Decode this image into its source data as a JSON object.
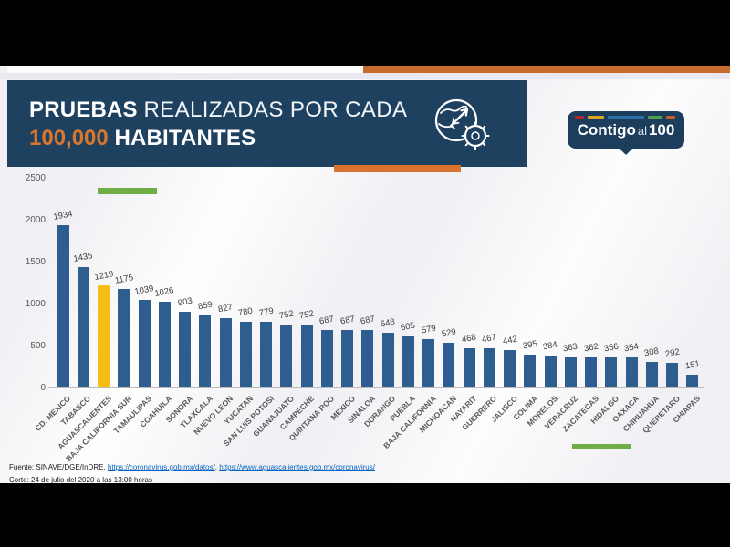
{
  "header": {
    "title_bold1": "PRUEBAS",
    "title_light1": "REALIZADAS POR CADA",
    "title_orange2": "100,000",
    "title_bold2": "HABITANTES"
  },
  "icons": {
    "header_icon": "globe-virus-icon"
  },
  "logo": {
    "word1": "Contigo",
    "word2": "al",
    "word3": "100"
  },
  "footer": {
    "source_prefix": "Fuente: SINAVE/DGE/InDRE,",
    "link1": "https://coronavirus.gob.mx/datos/",
    "separator": ",",
    "link2": "https://www.aguascalientes.gob.mx/coronavirus/",
    "cutoff_line": "Corte: 24 de julio del 2020 a las 13:00 horas"
  },
  "colors": {
    "header_navy": "#1E4160",
    "accent_orange": "#D9732D",
    "strip_orange": "#C76B2D",
    "accent_green": "#6FAD47",
    "bar_blue": "#2E5D8F",
    "bar_highlight_yellow": "#F6BD16",
    "link_blue": "#0563C1"
  },
  "chart_data": {
    "type": "bar",
    "title": "PRUEBAS REALIZADAS POR CADA 100,000 HABITANTES",
    "xlabel": "",
    "ylabel": "",
    "ylim": [
      0,
      2500
    ],
    "yticks": [
      0,
      500,
      1000,
      1500,
      2000,
      2500
    ],
    "grid": false,
    "legend": false,
    "bar_color": "#2E5D8F",
    "highlight_index": 2,
    "highlight_color": "#F6BD16",
    "categories": [
      "CD. MEXICO",
      "TABASCO",
      "AGUASCALIENTES",
      "BAJA CALIFORNIA SUR",
      "TAMAULIPAS",
      "COAHUILA",
      "SONORA",
      "TLAXCALA",
      "NUEVO LEON",
      "YUCATAN",
      "SAN LUIS POTOSI",
      "GUANAJUATO",
      "CAMPECHE",
      "QUINTANA ROO",
      "MEXICO",
      "SINALOA",
      "DURANGO",
      "PUEBLA",
      "BAJA CALIFORNIA",
      "MICHOACAN",
      "NAYARIT",
      "GUERRERO",
      "JALISCO",
      "COLIMA",
      "MORELOS",
      "VERACRUZ",
      "ZACATECAS",
      "HIDALGO",
      "OAXACA",
      "CHIHUAHUA",
      "QUERETARO",
      "CHIAPAS"
    ],
    "values": [
      1934,
      1435,
      1219,
      1175,
      1039,
      1026,
      903,
      859,
      827,
      780,
      779,
      752,
      752,
      687,
      687,
      687,
      648,
      605,
      579,
      529,
      468,
      467,
      442,
      395,
      384,
      363,
      362,
      356,
      354,
      308,
      292,
      151
    ]
  }
}
